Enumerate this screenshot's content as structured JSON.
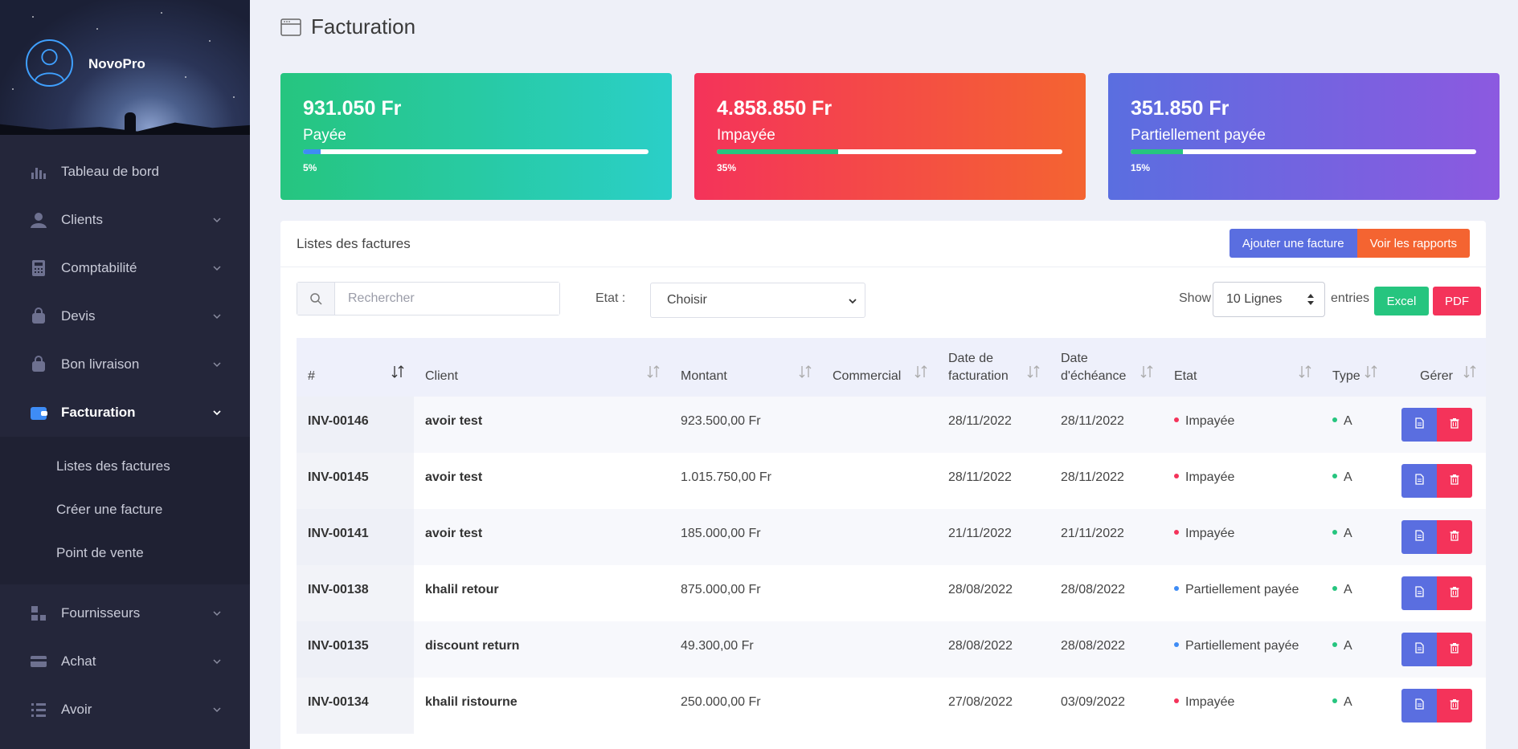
{
  "app": {
    "brand": "NovoPro"
  },
  "sidebar": {
    "items": [
      {
        "label": "Tableau de bord",
        "icon": "chart-bars-icon",
        "has_chevron": false
      },
      {
        "label": "Clients",
        "icon": "user-icon",
        "has_chevron": true
      },
      {
        "label": "Comptabilité",
        "icon": "calculator-icon",
        "has_chevron": true
      },
      {
        "label": "Devis",
        "icon": "bag-icon",
        "has_chevron": true
      },
      {
        "label": "Bon livraison",
        "icon": "bag-icon",
        "has_chevron": true
      },
      {
        "label": "Facturation",
        "icon": "wallet-icon",
        "has_chevron": true,
        "active": true
      },
      {
        "label": "Fournisseurs",
        "icon": "layout-icon",
        "has_chevron": true
      },
      {
        "label": "Achat",
        "icon": "card-icon",
        "has_chevron": true
      },
      {
        "label": "Avoir",
        "icon": "list-icon",
        "has_chevron": true
      }
    ],
    "subitems": [
      "Listes des factures",
      "Créer une facture",
      "Point de vente"
    ]
  },
  "page": {
    "title": "Facturation"
  },
  "cards": [
    {
      "amount": "931.050 Fr",
      "label": "Payée",
      "percent": 5,
      "percent_label": "5%",
      "fill_color": "#3e8cf5"
    },
    {
      "amount": "4.858.850 Fr",
      "label": "Impayée",
      "percent": 35,
      "percent_label": "35%",
      "fill_color": "#26c57f"
    },
    {
      "amount": "351.850 Fr",
      "label": "Partiellement payée",
      "percent": 15,
      "percent_label": "15%",
      "fill_color": "#26c57f"
    }
  ],
  "panel": {
    "title": "Listes des factures",
    "add_button": "Ajouter une facture",
    "reports_button": "Voir les rapports"
  },
  "filters": {
    "search_placeholder": "Rechercher",
    "etat_label": "Etat :",
    "etat_value": "Choisir",
    "show_label": "Show",
    "lines_value": "10 Lignes",
    "entries_label": "entries",
    "excel_button": "Excel",
    "pdf_button": "PDF"
  },
  "table": {
    "headers": [
      "#",
      "Client",
      "Montant",
      "Commercial",
      "Date de facturation",
      "Date d'échéance",
      "Etat",
      "Type",
      "Gérer"
    ],
    "rows": [
      {
        "id": "INV-00146",
        "client": "avoir test",
        "montant": "923.500,00 Fr",
        "commercial": "",
        "date_fact": "28/11/2022",
        "date_ech": "28/11/2022",
        "etat": "Impayée",
        "etat_color": "#f4335a",
        "type": "A"
      },
      {
        "id": "INV-00145",
        "client": "avoir test",
        "montant": "1.015.750,00 Fr",
        "commercial": "",
        "date_fact": "28/11/2022",
        "date_ech": "28/11/2022",
        "etat": "Impayée",
        "etat_color": "#f4335a",
        "type": "A"
      },
      {
        "id": "INV-00141",
        "client": "avoir test",
        "montant": "185.000,00 Fr",
        "commercial": "",
        "date_fact": "21/11/2022",
        "date_ech": "21/11/2022",
        "etat": "Impayée",
        "etat_color": "#f4335a",
        "type": "A"
      },
      {
        "id": "INV-00138",
        "client": "khalil retour",
        "montant": "875.000,00 Fr",
        "commercial": "",
        "date_fact": "28/08/2022",
        "date_ech": "28/08/2022",
        "etat": "Partiellement payée",
        "etat_color": "#3e8cf5",
        "type": "A"
      },
      {
        "id": "INV-00135",
        "client": "discount return",
        "montant": "49.300,00 Fr",
        "commercial": "",
        "date_fact": "28/08/2022",
        "date_ech": "28/08/2022",
        "etat": "Partiellement payée",
        "etat_color": "#3e8cf5",
        "type": "A"
      },
      {
        "id": "INV-00134",
        "client": "khalil ristourne",
        "montant": "250.000,00 Fr",
        "commercial": "",
        "date_fact": "27/08/2022",
        "date_ech": "03/09/2022",
        "etat": "Impayée",
        "etat_color": "#f4335a",
        "type": "A"
      }
    ]
  },
  "colors": {
    "type_dot": "#26c57f",
    "sidebar_bg": "#24263a",
    "accent_blue": "#5a6ee0",
    "accent_red": "#f4335a"
  }
}
